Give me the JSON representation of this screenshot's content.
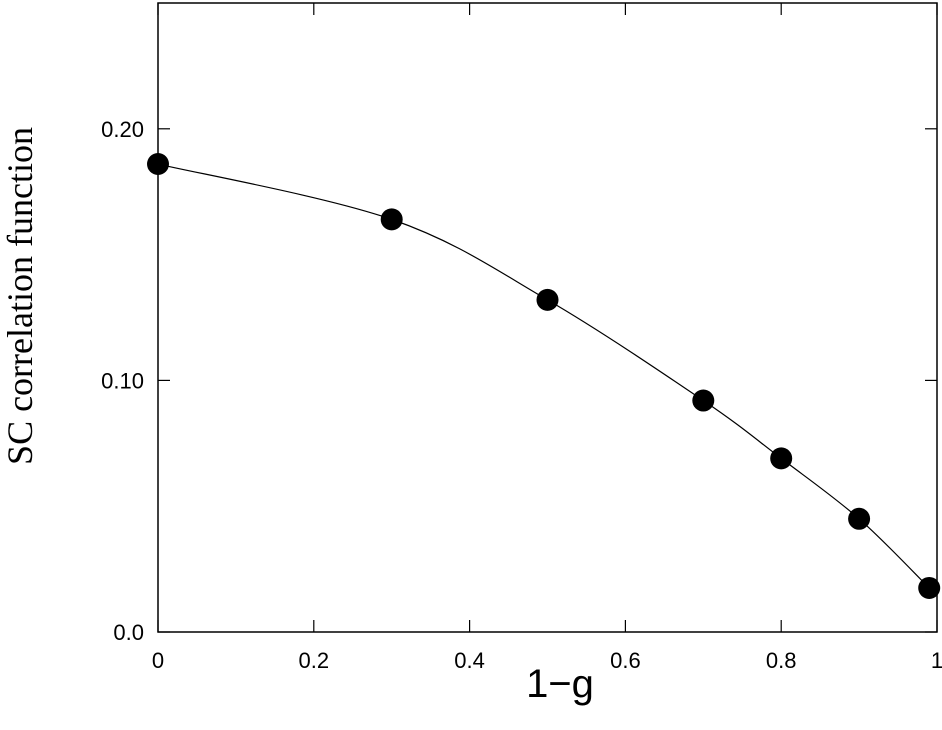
{
  "chart_data": {
    "type": "scatter",
    "x_label": "1−g",
    "y_label": "SC correlation function",
    "x": [
      0,
      0.3,
      0.5,
      0.7,
      0.8,
      0.9,
      0.99
    ],
    "values": [
      0.186,
      0.164,
      0.132,
      0.092,
      0.069,
      0.045,
      0.0175
    ],
    "color": "#000000",
    "connect": true,
    "xlim": [
      0,
      1
    ],
    "ylim": [
      0,
      0.25
    ],
    "xticks": [
      0,
      0.2,
      0.4,
      0.6,
      0.8,
      1
    ],
    "yticks": [
      {
        "value": 0,
        "label": "0.0"
      },
      {
        "value": 0.1,
        "label": "0.10"
      },
      {
        "value": 0.2,
        "label": "0.20"
      }
    ]
  }
}
